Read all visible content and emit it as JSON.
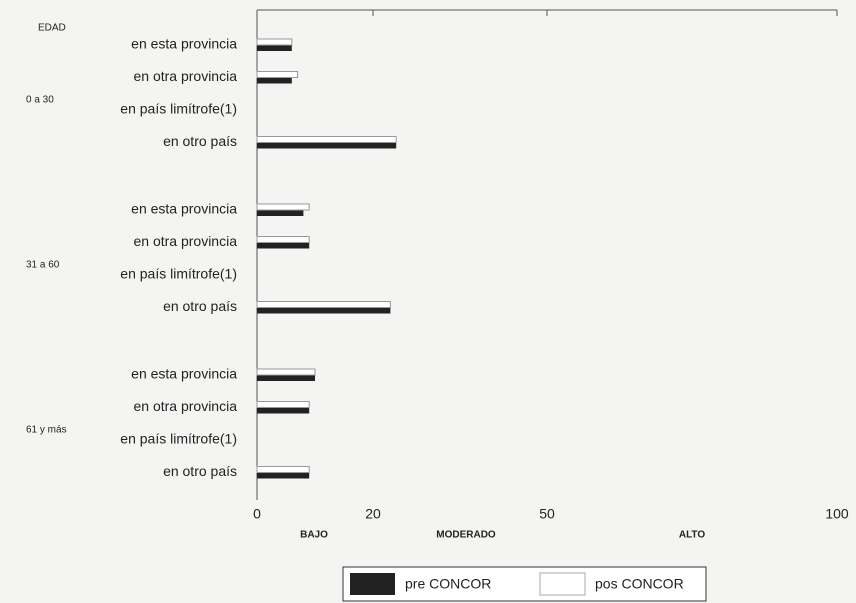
{
  "chart_data": {
    "type": "bar",
    "orientation": "horizontal",
    "y_axis_title": "EDAD",
    "group_labels": [
      "0 a 30",
      "31 a 60",
      "61 y más"
    ],
    "categories": [
      "en esta provincia",
      "en otra provincia",
      "en país limítrofe(1)",
      "en otro país",
      "en esta provincia",
      "en otra provincia",
      "en país limítrofe(1)",
      "en otro país",
      "en esta provincia",
      "en otra provincia",
      "en país limítrofe(1)",
      "en otro país"
    ],
    "series": [
      {
        "name": "pre CONCOR",
        "color": "#222222",
        "values": [
          6,
          6,
          0,
          24,
          8,
          9,
          0,
          23,
          10,
          9,
          0,
          9
        ]
      },
      {
        "name": "pos CONCOR",
        "color": "#ffffff",
        "values": [
          6,
          7,
          0,
          24,
          9,
          9,
          0,
          23,
          10,
          9,
          0,
          9
        ]
      }
    ],
    "xlim": [
      0,
      100
    ],
    "xticks": [
      0,
      20,
      50,
      100
    ],
    "annotations": [
      "BAJO",
      "MODERADO",
      "ALTO"
    ],
    "grid": false,
    "legend": "bottom"
  }
}
